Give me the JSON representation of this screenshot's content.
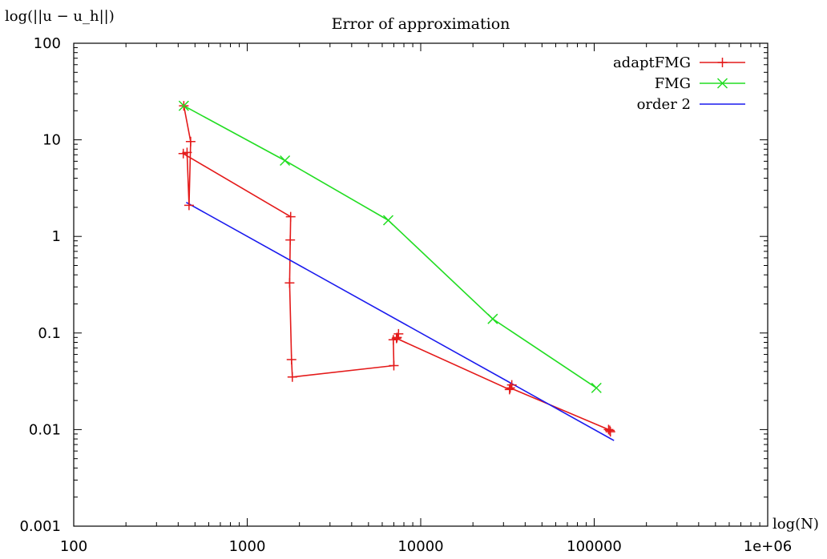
{
  "chart_data": {
    "type": "line",
    "title": "Error of approximation",
    "xlabel": "log(N)",
    "ylabel": "log(||u − u_h||)",
    "xscale": "log",
    "yscale": "log",
    "xlim": [
      100,
      1000000
    ],
    "ylim": [
      0.001,
      100
    ],
    "xticks": [
      {
        "value": 100,
        "label": "100"
      },
      {
        "value": 1000,
        "label": "1000"
      },
      {
        "value": 10000,
        "label": "10000"
      },
      {
        "value": 100000,
        "label": "100000"
      },
      {
        "value": 1000000,
        "label": "1e+06"
      }
    ],
    "yticks": [
      {
        "value": 0.001,
        "label": "0.001"
      },
      {
        "value": 0.01,
        "label": "0.01"
      },
      {
        "value": 0.1,
        "label": "0.1"
      },
      {
        "value": 1,
        "label": "1"
      },
      {
        "value": 10,
        "label": "10"
      },
      {
        "value": 100,
        "label": "100"
      }
    ],
    "legend_position": "top-right",
    "grid": false,
    "series": [
      {
        "name": "adaptFMG",
        "color": "#e41a1a",
        "marker": "plus",
        "points": [
          [
            431,
            22.5
          ],
          [
            472,
            9.6
          ],
          [
            462,
            2.1
          ],
          [
            450,
            7.4
          ],
          [
            428,
            7.2
          ],
          [
            1780,
            1.6
          ],
          [
            1770,
            0.92
          ],
          [
            1755,
            0.33
          ],
          [
            1800,
            0.053
          ],
          [
            1820,
            0.035
          ],
          [
            7000,
            0.046
          ],
          [
            6950,
            0.085
          ],
          [
            7300,
            0.09
          ],
          [
            7450,
            0.098
          ],
          [
            7250,
            0.088
          ],
          [
            32500,
            0.026
          ],
          [
            33500,
            0.029
          ],
          [
            32800,
            0.027
          ],
          [
            121000,
            0.01
          ],
          [
            124000,
            0.0095
          ],
          [
            123000,
            0.0098
          ]
        ]
      },
      {
        "name": "FMG",
        "color": "#22dd22",
        "marker": "cross",
        "points": [
          [
            431,
            22.5
          ],
          [
            1650,
            6.1
          ],
          [
            6500,
            1.47
          ],
          [
            26000,
            0.14
          ],
          [
            103000,
            0.027
          ]
        ]
      },
      {
        "name": "order 2",
        "color": "#1a1aee",
        "marker": "none",
        "points": [
          [
            445,
            2.25
          ],
          [
            130000,
            0.0077
          ]
        ]
      }
    ]
  }
}
